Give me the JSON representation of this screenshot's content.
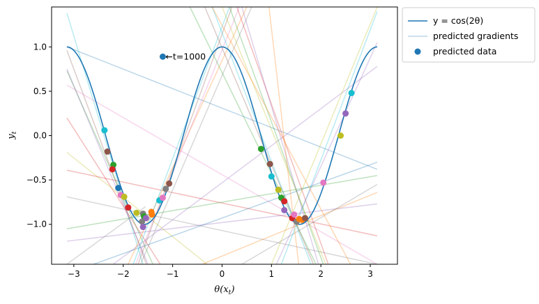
{
  "chart_data": {
    "type": "line",
    "xlabel": "θ(x_t)",
    "ylabel": "y_t",
    "xlim": [
      -3.45,
      3.55
    ],
    "ylim": [
      -1.45,
      1.45
    ],
    "xticks": [
      -3,
      -2,
      -1,
      0,
      1,
      2,
      3
    ],
    "yticks": [
      -1.0,
      -0.5,
      0.0,
      0.5,
      1.0
    ],
    "ytick_labels": [
      "−1.0",
      "−0.5",
      "0.0",
      "0.5",
      "1.0"
    ],
    "xtick_labels": [
      "−3",
      "−2",
      "−1",
      "0",
      "1",
      "2",
      "3"
    ],
    "grid": false,
    "legend_position": "outside-top-right",
    "legend": {
      "curve": "y = cos(2θ)",
      "gradients": "predicted gradients",
      "points": "predicted data"
    },
    "annotation": {
      "text": "←t=1000",
      "x": -1.2,
      "y": 0.89
    },
    "curve": {
      "function": "cos(2θ)",
      "x_range": [
        -3.1416,
        3.1416
      ],
      "color": "#1f77b4"
    },
    "palette": [
      "#1f77b4",
      "#ff7f0e",
      "#2ca02c",
      "#d62728",
      "#9467bd",
      "#8c564b",
      "#e377c2",
      "#7f7f7f",
      "#bcbd22",
      "#17becf"
    ],
    "predicted_points": [
      {
        "x": -1.2,
        "y": 0.89,
        "color": "#1f77b4"
      },
      {
        "x": -2.38,
        "y": 0.06,
        "color": "#17becf"
      },
      {
        "x": -2.32,
        "y": -0.18,
        "color": "#8c564b"
      },
      {
        "x": -2.2,
        "y": -0.33,
        "color": "#2ca02c"
      },
      {
        "x": -2.22,
        "y": -0.38,
        "color": "#d62728"
      },
      {
        "x": -2.1,
        "y": -0.59,
        "color": "#1f77b4"
      },
      {
        "x": -2.05,
        "y": -0.67,
        "color": "#e377c2"
      },
      {
        "x": -1.98,
        "y": -0.69,
        "color": "#bcbd22"
      },
      {
        "x": -1.9,
        "y": -0.81,
        "color": "#d62728"
      },
      {
        "x": -1.73,
        "y": -0.87,
        "color": "#bcbd22"
      },
      {
        "x": -1.6,
        "y": -0.88,
        "color": "#7f7f7f"
      },
      {
        "x": -1.58,
        "y": -0.91,
        "color": "#2ca02c"
      },
      {
        "x": -1.54,
        "y": -0.93,
        "color": "#9467bd"
      },
      {
        "x": -1.62,
        "y": -0.97,
        "color": "#7f7f7f"
      },
      {
        "x": -1.6,
        "y": -1.03,
        "color": "#9467bd"
      },
      {
        "x": -1.43,
        "y": -0.86,
        "color": "#ff7f0e"
      },
      {
        "x": -1.42,
        "y": -0.89,
        "color": "#ff7f0e"
      },
      {
        "x": -1.27,
        "y": -0.73,
        "color": "#17becf"
      },
      {
        "x": -1.2,
        "y": -0.7,
        "color": "#e377c2"
      },
      {
        "x": -1.14,
        "y": -0.6,
        "color": "#7f7f7f"
      },
      {
        "x": -1.07,
        "y": -0.54,
        "color": "#8c564b"
      },
      {
        "x": 0.79,
        "y": -0.15,
        "color": "#2ca02c"
      },
      {
        "x": 0.97,
        "y": -0.32,
        "color": "#8c564b"
      },
      {
        "x": 1.0,
        "y": -0.46,
        "color": "#17becf"
      },
      {
        "x": 1.14,
        "y": -0.61,
        "color": "#bcbd22"
      },
      {
        "x": 1.2,
        "y": -0.7,
        "color": "#2ca02c"
      },
      {
        "x": 1.26,
        "y": -0.74,
        "color": "#d62728"
      },
      {
        "x": 1.26,
        "y": -0.84,
        "color": "#9467bd"
      },
      {
        "x": 1.42,
        "y": -0.93,
        "color": "#d62728"
      },
      {
        "x": 1.46,
        "y": -0.89,
        "color": "#e377c2"
      },
      {
        "x": 1.51,
        "y": -0.97,
        "color": "#7f7f7f"
      },
      {
        "x": 1.56,
        "y": -0.94,
        "color": "#ff7f0e"
      },
      {
        "x": 1.62,
        "y": -0.95,
        "color": "#ff7f0e"
      },
      {
        "x": 1.68,
        "y": -0.93,
        "color": "#8c564b"
      },
      {
        "x": 2.05,
        "y": -0.53,
        "color": "#e377c2"
      },
      {
        "x": 2.4,
        "y": 0.0,
        "color": "#bcbd22"
      },
      {
        "x": 2.5,
        "y": 0.25,
        "color": "#9467bd"
      },
      {
        "x": 2.62,
        "y": 0.48,
        "color": "#17becf"
      }
    ],
    "gradient_lines": [
      {
        "x1": -3.14,
        "y1": 1.0,
        "x2": 3.14,
        "y2": -0.38,
        "color": "#1f77b4"
      },
      {
        "x1": -3.14,
        "y1": 1.38,
        "x2": -1.6,
        "y2": -1.45,
        "color": "#17becf"
      },
      {
        "x1": -3.14,
        "y1": 0.96,
        "x2": -1.53,
        "y2": -1.45,
        "color": "#8c564b"
      },
      {
        "x1": -3.14,
        "y1": 0.73,
        "x2": -1.4,
        "y2": -1.45,
        "color": "#2ca02c"
      },
      {
        "x1": -3.14,
        "y1": 0.2,
        "x2": -1.25,
        "y2": -1.45,
        "color": "#d62728"
      },
      {
        "x1": -3.14,
        "y1": 0.75,
        "x2": -1.5,
        "y2": -1.45,
        "color": "#9467bd"
      },
      {
        "x1": -3.14,
        "y1": 0.57,
        "x2": 3.14,
        "y2": -1.45,
        "color": "#e377c2"
      },
      {
        "x1": -3.14,
        "y1": -0.19,
        "x2": -0.3,
        "y2": -1.45,
        "color": "#bcbd22"
      },
      {
        "x1": -3.14,
        "y1": -0.39,
        "x2": 3.14,
        "y2": -1.13,
        "color": "#d62728"
      },
      {
        "x1": -3.14,
        "y1": -0.69,
        "x2": 3.14,
        "y2": -1.45,
        "color": "#7f7f7f"
      },
      {
        "x1": -3.14,
        "y1": -1.05,
        "x2": 3.14,
        "y2": -0.45,
        "color": "#2ca02c"
      },
      {
        "x1": -3.14,
        "y1": -1.19,
        "x2": 3.14,
        "y2": -0.77,
        "color": "#9467bd"
      },
      {
        "x1": -2.2,
        "y1": -1.45,
        "x2": 3.14,
        "y2": 0.78,
        "color": "#9467bd"
      },
      {
        "x1": -2.6,
        "y1": -1.45,
        "x2": 3.14,
        "y2": -0.3,
        "color": "#1f77b4"
      },
      {
        "x1": -1.9,
        "y1": -1.45,
        "x2": 0.5,
        "y2": 1.45,
        "color": "#ff7f0e"
      },
      {
        "x1": -1.8,
        "y1": -1.45,
        "x2": 0.15,
        "y2": 1.45,
        "color": "#17becf"
      },
      {
        "x1": -1.75,
        "y1": -1.45,
        "x2": 0.35,
        "y2": 1.45,
        "color": "#e377c2"
      },
      {
        "x1": -1.65,
        "y1": -1.45,
        "x2": 0.6,
        "y2": 1.45,
        "color": "#7f7f7f"
      },
      {
        "x1": -1.7,
        "y1": -1.45,
        "x2": 0.2,
        "y2": 1.45,
        "color": "#8c564b"
      },
      {
        "x1": -0.65,
        "y1": 1.45,
        "x2": 1.9,
        "y2": -1.45,
        "color": "#2ca02c"
      },
      {
        "x1": -0.35,
        "y1": 1.45,
        "x2": 1.85,
        "y2": -1.45,
        "color": "#8c564b"
      },
      {
        "x1": -0.2,
        "y1": 1.45,
        "x2": 1.8,
        "y2": -1.45,
        "color": "#17becf"
      },
      {
        "x1": 0.0,
        "y1": 1.45,
        "x2": 2.1,
        "y2": -1.45,
        "color": "#bcbd22"
      },
      {
        "x1": 0.15,
        "y1": 1.45,
        "x2": 2.05,
        "y2": -1.45,
        "color": "#2ca02c"
      },
      {
        "x1": 0.3,
        "y1": 1.45,
        "x2": 2.15,
        "y2": -1.45,
        "color": "#d62728"
      },
      {
        "x1": 0.4,
        "y1": 1.45,
        "x2": 1.95,
        "y2": -1.45,
        "color": "#9467bd"
      },
      {
        "x1": 0.95,
        "y1": 1.45,
        "x2": 1.55,
        "y2": -1.45,
        "color": "#ff7f0e"
      },
      {
        "x1": -0.4,
        "y1": -1.45,
        "x2": 3.14,
        "y2": -0.64,
        "color": "#ff7f0e"
      },
      {
        "x1": 0.4,
        "y1": -1.45,
        "x2": 3.14,
        "y2": -0.55,
        "color": "#7f7f7f"
      },
      {
        "x1": 1.0,
        "y1": -1.45,
        "x2": 3.14,
        "y2": 1.45,
        "color": "#bcbd22"
      },
      {
        "x1": 1.2,
        "y1": -1.45,
        "x2": 3.14,
        "y2": 1.4,
        "color": "#17becf"
      },
      {
        "x1": 1.1,
        "y1": -1.45,
        "x2": 3.14,
        "y2": 1.05,
        "color": "#9467bd"
      },
      {
        "x1": -0.2,
        "y1": 1.45,
        "x2": 2.6,
        "y2": -1.45,
        "color": "#ff7f0e"
      },
      {
        "x1": -3.14,
        "y1": -1.45,
        "x2": -1.55,
        "y2": -0.8,
        "color": "#7f7f7f"
      }
    ]
  }
}
